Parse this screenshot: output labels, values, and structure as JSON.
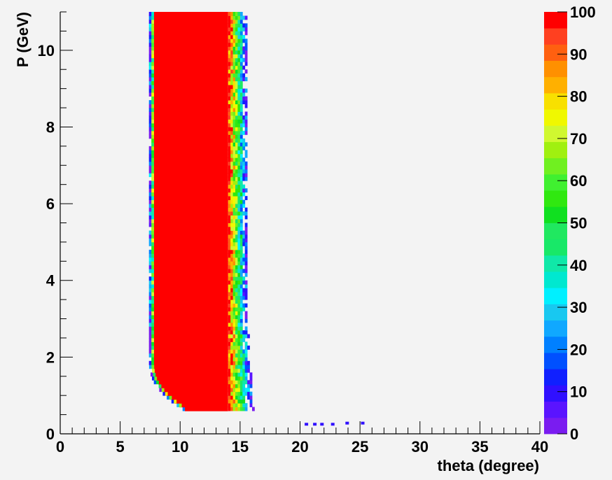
{
  "chart_data": {
    "type": "heatmap",
    "title": "",
    "xlabel": "theta (degree)",
    "ylabel": "P (GeV)",
    "xlim": [
      0,
      40
    ],
    "ylim": [
      0,
      11
    ],
    "x_ticks": [
      "0",
      "5",
      "10",
      "15",
      "20",
      "25",
      "30",
      "35",
      "40"
    ],
    "y_ticks": [
      "0",
      "2",
      "4",
      "6",
      "8",
      "10"
    ],
    "colorbar": {
      "range": [
        0,
        100
      ],
      "tick_labels": [
        "0",
        "10",
        "20",
        "30",
        "40",
        "50",
        "60",
        "70",
        "80",
        "90",
        "100"
      ],
      "palette": [
        "#7a1cf0",
        "#5a14ff",
        "#3010ff",
        "#1020ff",
        "#0050ff",
        "#0080ff",
        "#10a8ff",
        "#18c8f0",
        "#00f0ff",
        "#00e8d0",
        "#10e8a8",
        "#18e868",
        "#20e860",
        "#10e020",
        "#30e810",
        "#40f030",
        "#70f020",
        "#a0f010",
        "#d0f830",
        "#f0f800",
        "#f8e000",
        "#ffb000",
        "#ff9000",
        "#ff6010",
        "#ff4020",
        "#ff0000"
      ]
    },
    "band": {
      "description_units": "theta in degrees, P in GeV",
      "core_value": 100,
      "core_left_edge_deg": 7.8,
      "core_right_edge_deg": 14.0,
      "outer_left_edge_deg": 7.4,
      "outer_right_edge_deg": 15.5,
      "p_min_gev": 0.6,
      "p_max_gev": 11.0,
      "low_p_curve_knee_gev": 1.8,
      "low_p_right_extension_deg": 16.0
    },
    "isolated_points": [
      {
        "theta": 20.5,
        "p": 0.25,
        "value": 10
      },
      {
        "theta": 21.2,
        "p": 0.25,
        "value": 10
      },
      {
        "theta": 21.8,
        "p": 0.25,
        "value": 10
      },
      {
        "theta": 22.7,
        "p": 0.25,
        "value": 10
      },
      {
        "theta": 23.9,
        "p": 0.28,
        "value": 10
      },
      {
        "theta": 25.2,
        "p": 0.28,
        "value": 10
      }
    ]
  }
}
